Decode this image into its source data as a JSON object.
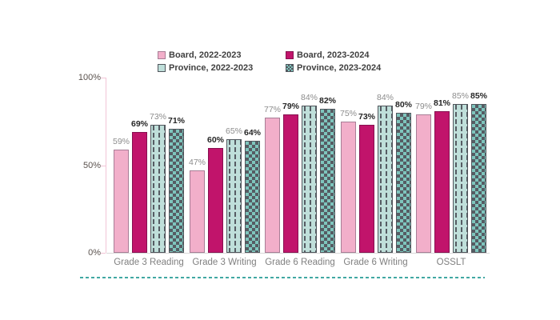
{
  "chart_data": {
    "type": "bar",
    "title": "",
    "categories": [
      "Grade 3 Reading",
      "Grade 3 Writing",
      "Grade 6 Reading",
      "Grade 6 Writing",
      "OSSLT"
    ],
    "series": [
      {
        "name": "Board, 2022-2023",
        "style_key": "board-2022",
        "label_style": "muted",
        "values": [
          59,
          47,
          77,
          75,
          79
        ]
      },
      {
        "name": "Board, 2023-2024",
        "style_key": "board-2023",
        "label_style": "strong",
        "values": [
          69,
          60,
          79,
          73,
          81
        ]
      },
      {
        "name": "Province, 2022-2023",
        "style_key": "province-2022",
        "label_style": "muted",
        "values": [
          73,
          65,
          84,
          84,
          85
        ]
      },
      {
        "name": "Province, 2023-2024",
        "style_key": "province-2023",
        "label_style": "strong",
        "values": [
          71,
          64,
          82,
          80,
          85
        ]
      }
    ],
    "value_suffix": "%",
    "ylim": [
      0,
      100
    ],
    "yticks": [
      {
        "value": 100,
        "label": "100%"
      },
      {
        "value": 50,
        "label": "50%"
      },
      {
        "value": 0,
        "label": "0%"
      }
    ],
    "grid": false,
    "legend_position": "top",
    "data_labels": true
  },
  "colors": {
    "board-2022-fill": "#F2AFCA",
    "board-2022-border": "#A87E96",
    "board-2023-fill": "#C1146B",
    "board-2023-border": "#871050",
    "province-2022-fill": "#BFDFDA",
    "province-2023-fill": "#7EC5BD",
    "province-border": "#50565C",
    "pattern-dark": "#565C63",
    "axis-line": "#F2C5D6",
    "baseline": "#D9D9D9",
    "dashed-rule": "#41A8A3",
    "label-muted": "#8C8C8C",
    "label-strong": "#262626",
    "tick-label": "#5B524E",
    "category-label": "#808080",
    "legend-text": "#404040"
  }
}
